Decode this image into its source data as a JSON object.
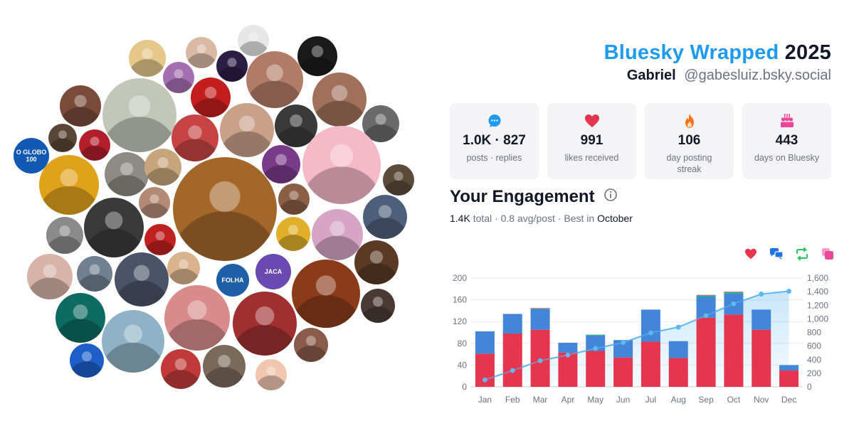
{
  "header": {
    "brand": "Bluesky Wrapped",
    "year": "2025",
    "display_name": "Gabriel",
    "handle": "@gabesluiz.bsky.social"
  },
  "stats": [
    {
      "icon": "speech-bubble-icon",
      "value": "1.0K · 827",
      "label": "posts · replies",
      "color": "#1d9bf0"
    },
    {
      "icon": "heart-icon",
      "value": "991",
      "label": "likes received",
      "color": "#e5354f"
    },
    {
      "icon": "flame-icon",
      "value": "106",
      "label": "day posting streak",
      "color": "#f97316"
    },
    {
      "icon": "cake-icon",
      "value": "443",
      "label": "days on Bluesky",
      "color": "#ec4899"
    }
  ],
  "engagement": {
    "title": "Your Engagement",
    "total": "1.4K",
    "total_label": "total",
    "avg": "0.8 avg/post",
    "best_prefix": "Best in",
    "best_month": "October"
  },
  "legend_icons": [
    {
      "name": "likes-legend-icon",
      "color": "#e5354f"
    },
    {
      "name": "replies-legend-icon",
      "color": "#1d73e8"
    },
    {
      "name": "reposts-legend-icon",
      "color": "#22c55e"
    },
    {
      "name": "quotes-legend-icon",
      "color": "#ec4899"
    }
  ],
  "chart_data": {
    "type": "bar",
    "stacked": true,
    "categories": [
      "Jan",
      "Feb",
      "Mar",
      "Apr",
      "May",
      "Jun",
      "Jul",
      "Aug",
      "Sep",
      "Oct",
      "Nov",
      "Dec"
    ],
    "series": [
      {
        "values": [
          61,
          98,
          105,
          63,
          66,
          54,
          83,
          53,
          127,
          133,
          105,
          30
        ],
        "color": "#e5354f"
      },
      {
        "values": [
          41,
          36,
          38,
          18,
          29,
          32,
          59,
          31,
          39,
          39,
          37,
          10
        ],
        "color": "#4285d9"
      },
      {
        "values": [
          0,
          0,
          1,
          0,
          1,
          0,
          0,
          0,
          2,
          2,
          0,
          0
        ],
        "color": "#22c55e"
      },
      {
        "values": [
          0,
          0,
          1,
          0,
          0,
          0,
          0,
          0,
          1,
          1,
          0,
          0
        ],
        "color": "#ec4899"
      }
    ],
    "cumulative": {
      "values": [
        102,
        240,
        385,
        468,
        564,
        651,
        794,
        878,
        1047,
        1222,
        1364,
        1406
      ],
      "color": "#60b8f0"
    },
    "ylim_left": [
      0,
      200
    ],
    "yticks_left": [
      "0",
      "40",
      "80",
      "120",
      "160",
      "200"
    ],
    "ylim_right": [
      0,
      1600
    ],
    "yticks_right": [
      "0",
      "200",
      "400",
      "600",
      "800",
      "1,000",
      "1,200",
      "1,400",
      "1,600"
    ],
    "grid": true
  },
  "avatars": [
    {
      "label": "",
      "bg": "#e6c78a",
      "fg": "#ffffff"
    },
    {
      "label": "",
      "bg": "#d9b8a4",
      "fg": "#ffffff"
    },
    {
      "label": "",
      "bg": "#e6e6e6",
      "fg": "#333333"
    },
    {
      "label": "",
      "bg": "#1a1a1a",
      "fg": "#f5d400"
    },
    {
      "label": "",
      "bg": "#a46fb0",
      "fg": "#ffffff"
    },
    {
      "label": "",
      "bg": "#2b1d44",
      "fg": "#ffffff"
    },
    {
      "label": "",
      "bg": "#b27b67",
      "fg": "#ffffff"
    },
    {
      "label": "",
      "bg": "#7a4b3b",
      "fg": "#ffffff"
    },
    {
      "label": "",
      "bg": "#c2c7b9",
      "fg": "#ffffff"
    },
    {
      "label": "",
      "bg": "#c41d1d",
      "fg": "#ffffff"
    },
    {
      "label": "",
      "bg": "#a0705a",
      "fg": "#ffffff"
    },
    {
      "label": "O GLOBO 100",
      "bg": "#1259b5",
      "fg": "#ffffff"
    },
    {
      "label": "",
      "bg": "#5a4636",
      "fg": "#ffffff"
    },
    {
      "label": "",
      "bg": "#b31e2b",
      "fg": "#ffffff"
    },
    {
      "label": "",
      "bg": "#c74444",
      "fg": "#ffffff"
    },
    {
      "label": "",
      "bg": "#c9a089",
      "fg": "#ffffff"
    },
    {
      "label": "",
      "bg": "#3a3a3a",
      "fg": "#ffffff"
    },
    {
      "label": "",
      "bg": "#6a6a6a",
      "fg": "#ffffff"
    },
    {
      "label": "",
      "bg": "#f5b9c8",
      "fg": "#ffffff"
    },
    {
      "label": "",
      "bg": "#8e8a84",
      "fg": "#ffffff"
    },
    {
      "label": "",
      "bg": "#c7a57c",
      "fg": "#ffffff"
    },
    {
      "label": "",
      "bg": "#7a3a8a",
      "fg": "#ffffff"
    },
    {
      "label": "",
      "bg": "#5c4a3a",
      "fg": "#ffffff"
    },
    {
      "label": "",
      "bg": "#e0a21b",
      "fg": "#ffffff"
    },
    {
      "label": "",
      "bg": "#b48a76",
      "fg": "#ffffff"
    },
    {
      "label": "",
      "bg": "#a4672a",
      "fg": "#ffffff"
    },
    {
      "label": "",
      "bg": "#8b5e46",
      "fg": "#ffffff"
    },
    {
      "label": "",
      "bg": "#4d5f7a",
      "fg": "#ffffff"
    },
    {
      "label": "",
      "bg": "#3a3a3a",
      "fg": "#ffffff"
    },
    {
      "label": "",
      "bg": "#c02020",
      "fg": "#ffffff"
    },
    {
      "label": "",
      "bg": "#e0b02b",
      "fg": "#ffffff"
    },
    {
      "label": "",
      "bg": "#d6a5c6",
      "fg": "#ffffff"
    },
    {
      "label": "",
      "bg": "#8a8a8a",
      "fg": "#ffffff"
    },
    {
      "label": "",
      "bg": "#5a3a25",
      "fg": "#ffffff"
    },
    {
      "label": "",
      "bg": "#d7b3a8",
      "fg": "#ffffff"
    },
    {
      "label": "",
      "bg": "#708090",
      "fg": "#ffffff"
    },
    {
      "label": "",
      "bg": "#4a5368",
      "fg": "#ffffff"
    },
    {
      "label": "",
      "bg": "#d8b38c",
      "fg": "#ffffff"
    },
    {
      "label": "FOLHA",
      "bg": "#1e5fa8",
      "fg": "#ffffff"
    },
    {
      "label": "JACA",
      "bg": "#6a4ab2",
      "fg": "#ffffff"
    },
    {
      "label": "",
      "bg": "#8b3a1a",
      "fg": "#ffffff"
    },
    {
      "label": "",
      "bg": "#d98b8b",
      "fg": "#ffffff"
    },
    {
      "label": "",
      "bg": "#a03030",
      "fg": "#ffffff"
    },
    {
      "label": "",
      "bg": "#0e6b63",
      "fg": "#ffffff"
    },
    {
      "label": "",
      "bg": "#8fb2c7",
      "fg": "#ffffff"
    },
    {
      "label": "",
      "bg": "#4a3a35",
      "fg": "#ffffff"
    },
    {
      "label": "",
      "bg": "#8a5a4a",
      "fg": "#ffffff"
    },
    {
      "label": "",
      "bg": "#1d5ec9",
      "fg": "#ffffff"
    },
    {
      "label": "",
      "bg": "#c03a3a",
      "fg": "#ffffff"
    },
    {
      "label": "",
      "bg": "#7a6a5a",
      "fg": "#ffffff"
    },
    {
      "label": "",
      "bg": "#f0c6b0",
      "fg": "#222222"
    },
    {
      "label": "",
      "bg": "#888070",
      "fg": "#ffffff"
    },
    {
      "label": "",
      "bg": "#c9a08a",
      "fg": "#ffffff"
    },
    {
      "label": "",
      "bg": "#c6a58c",
      "fg": "#ffffff"
    }
  ]
}
